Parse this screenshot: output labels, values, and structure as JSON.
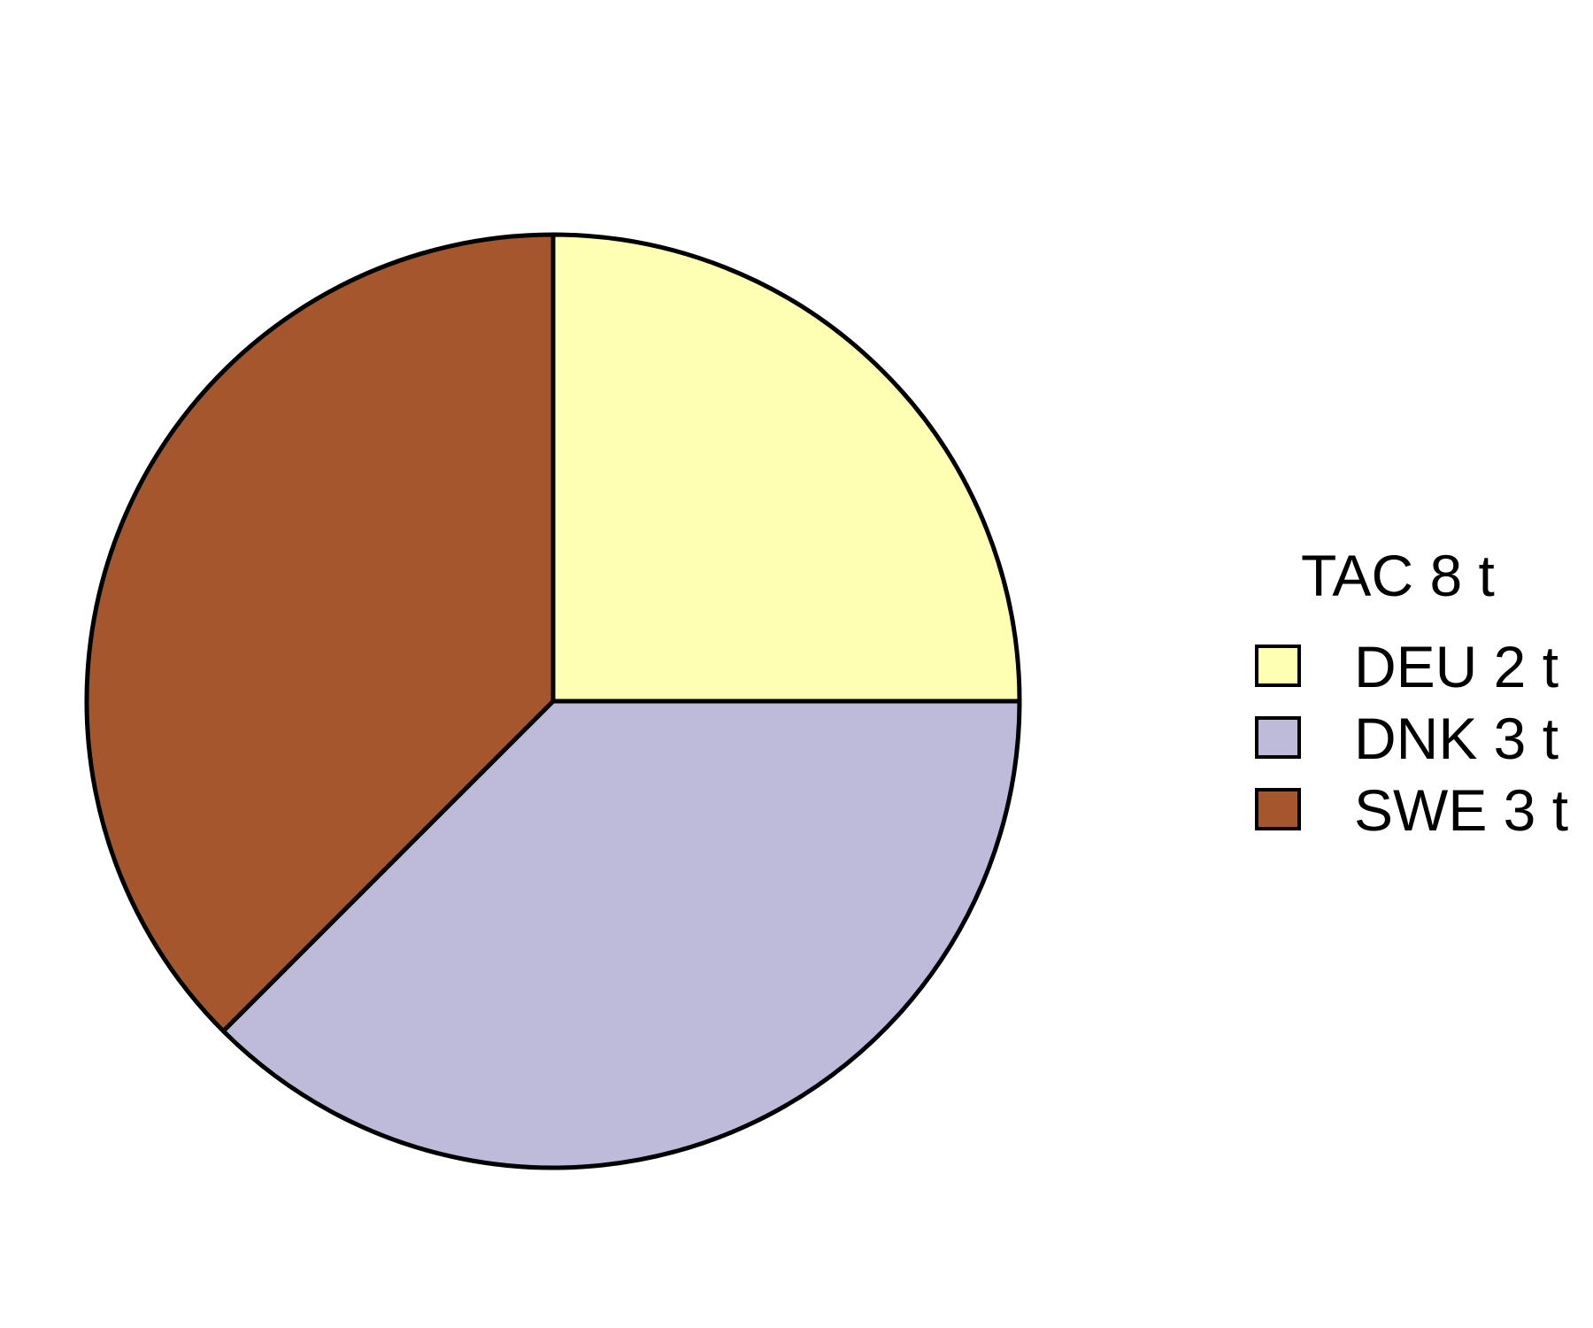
{
  "chart_data": {
    "type": "pie",
    "legend_title": "TAC 8 t",
    "legend_position": "right",
    "slices": [
      {
        "label": "DEU 2 t",
        "category": "DEU",
        "value": 2,
        "share": 0.25,
        "color": "#FFFFB3"
      },
      {
        "label": "DNK 3 t",
        "category": "DNK",
        "value": 3,
        "share": 0.375,
        "color": "#BEBADA"
      },
      {
        "label": "SWE 3 t",
        "category": "SWE",
        "value": 3,
        "share": 0.375,
        "color": "#A6562C"
      }
    ],
    "start_angle": "12 o'clock",
    "direction": "clockwise",
    "border_color": "#000000"
  }
}
